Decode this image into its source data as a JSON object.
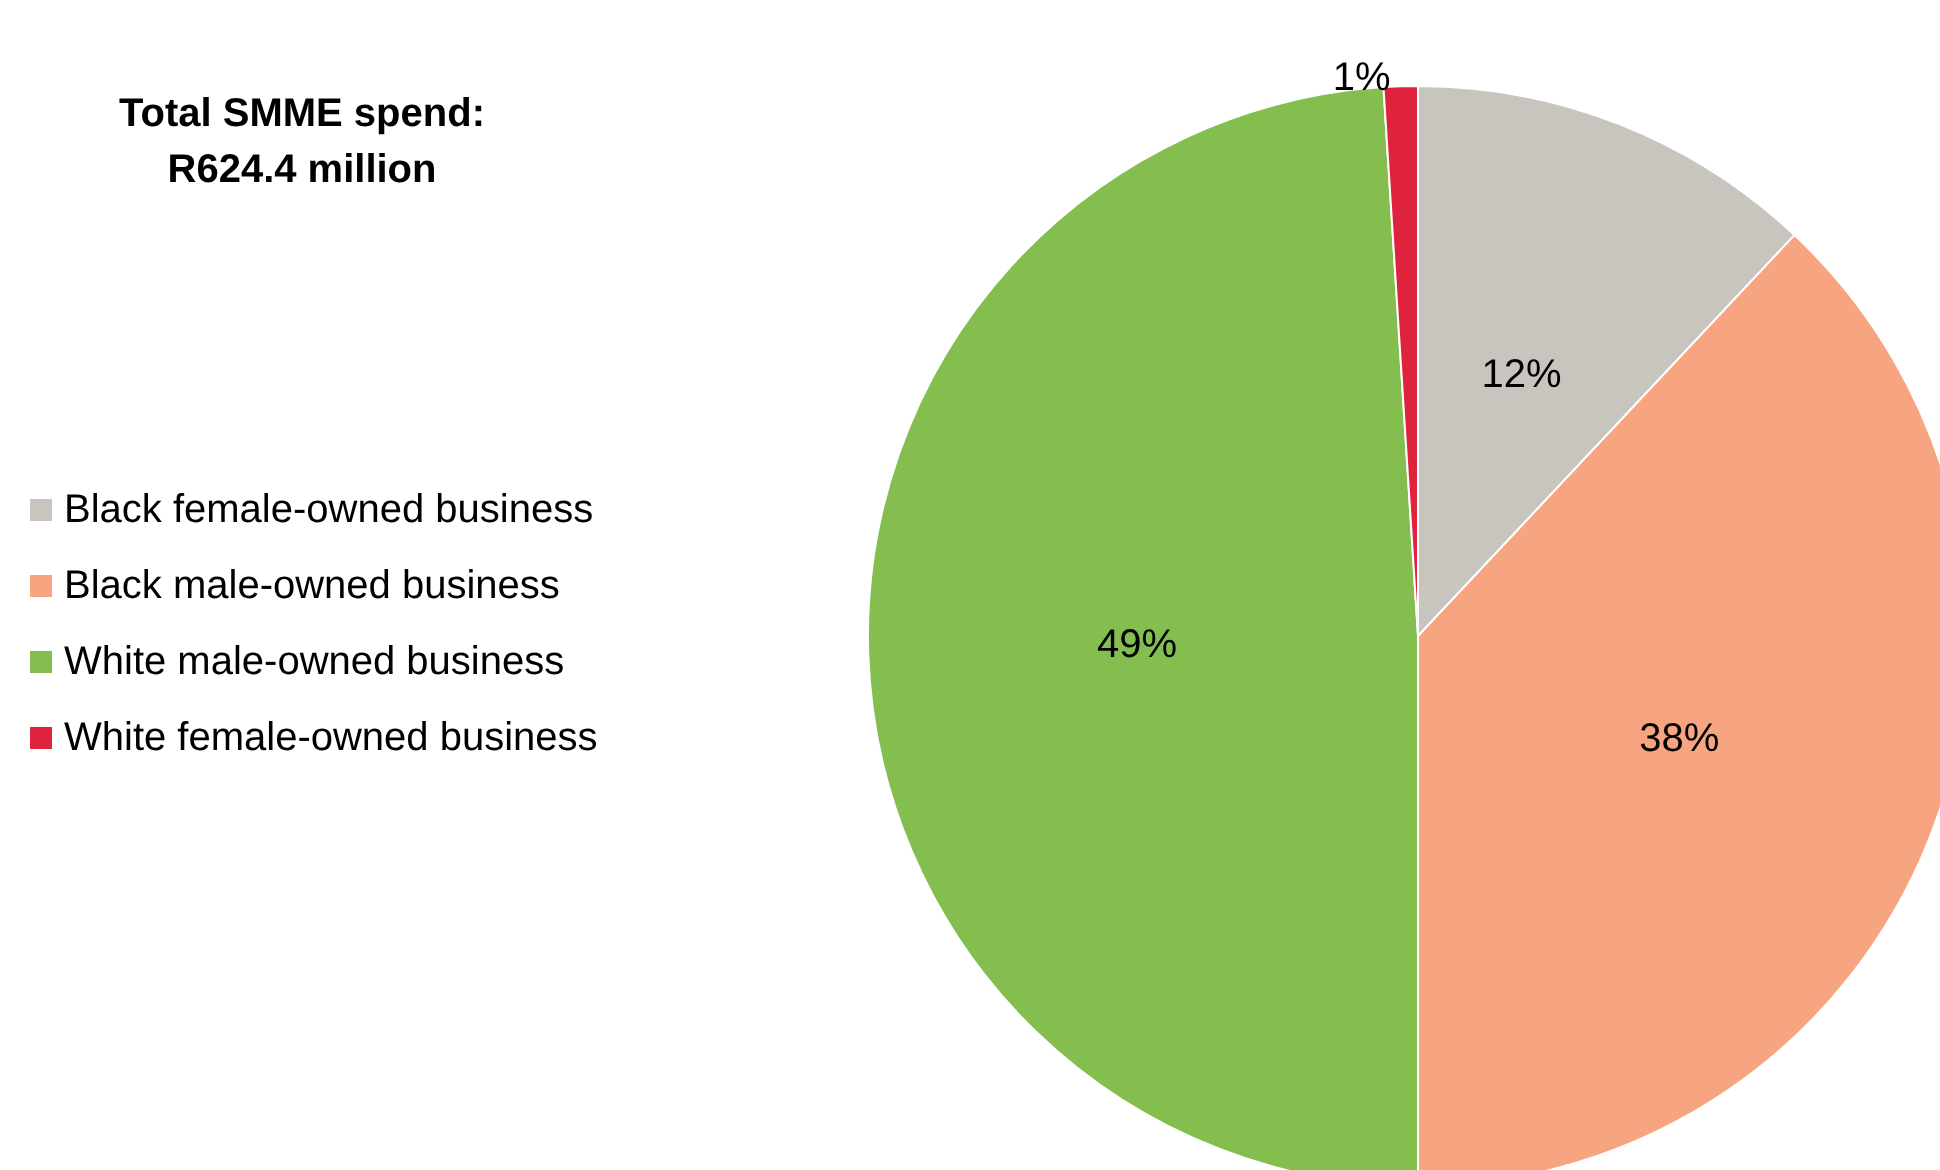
{
  "chart_data": {
    "type": "pie",
    "title": "Total SMME spend:\nR624.4 million",
    "categories": [
      "Black female-owned business",
      "Black male-owned business",
      "White male-owned business",
      "White female-owned business"
    ],
    "values": [
      12,
      38,
      49,
      1
    ],
    "colors": [
      "#c8c4be",
      "#f7a580",
      "#83be4f",
      "#e0233c"
    ],
    "value_labels": [
      "12%",
      "38%",
      "49%",
      "1%"
    ],
    "legend": "left"
  }
}
